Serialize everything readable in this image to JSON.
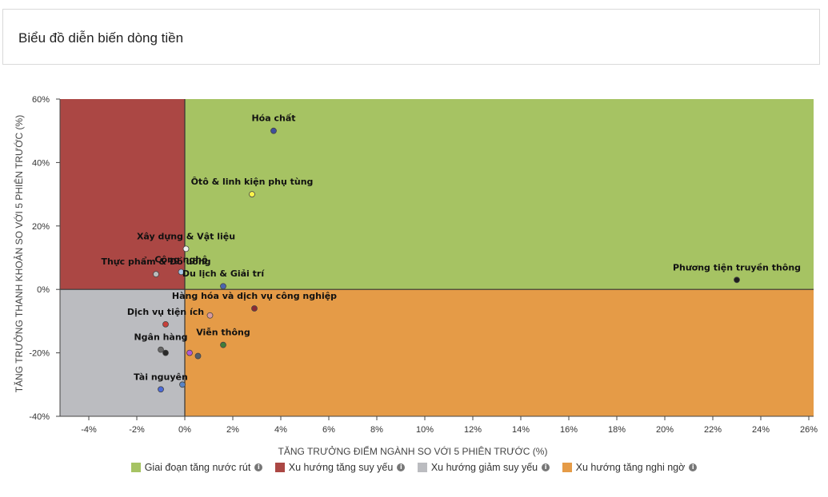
{
  "header": {
    "title": "Biểu đồ diễn biến dòng tiền"
  },
  "chart_data": {
    "type": "scatter",
    "xlabel": "TĂNG TRƯỞNG ĐIỂM NGÀNH SO VỚI 5 PHIÊN TRƯỚC (%)",
    "ylabel": "TĂNG TRƯỞNG THANH KHOẢN SO VỚI 5 PHIÊN TRƯỚC (%)",
    "xlim": [
      -5.2,
      26.2
    ],
    "ylim": [
      -40,
      60
    ],
    "x_ticks": [
      -4,
      -2,
      0,
      2,
      4,
      6,
      8,
      10,
      12,
      14,
      16,
      18,
      20,
      22,
      24,
      26
    ],
    "y_ticks": [
      -40,
      -20,
      0,
      20,
      40,
      60
    ],
    "quadrants": [
      {
        "name": "Giai đoạn tăng nước rút",
        "color": "#a6c363",
        "x_sign": "positive",
        "y_sign": "positive"
      },
      {
        "name": "Xu hướng tăng suy yếu",
        "color": "#ab4744",
        "x_sign": "negative",
        "y_sign": "positive"
      },
      {
        "name": "Xu hướng giảm suy yếu",
        "color": "#bbbcc0",
        "x_sign": "negative",
        "y_sign": "negative"
      },
      {
        "name": "Xu hướng tăng nghi ngờ",
        "color": "#e59b47",
        "x_sign": "positive",
        "y_sign": "negative"
      }
    ],
    "points": [
      {
        "label": "Hóa chất",
        "x": 3.7,
        "y": 50,
        "color": "#3e4f9b"
      },
      {
        "label": "Ôtô & linh kiện phụ tùng",
        "x": 2.8,
        "y": 30,
        "color": "#fcf34c"
      },
      {
        "label": "Xây dựng & Vật liệu",
        "x": 0.05,
        "y": 12.8,
        "color": "#f0f0f0"
      },
      {
        "label": "Công nghệ",
        "x": -0.15,
        "y": 5.5,
        "color": "#a7c6e6"
      },
      {
        "label": "Thực phẩm & Đồ uống",
        "x": -1.2,
        "y": 4.8,
        "color": "#bbbbbb"
      },
      {
        "label": "Du lịch & Giải trí",
        "x": 1.6,
        "y": 1,
        "color": "#4b64b0"
      },
      {
        "label": "Phương tiện truyền thông",
        "x": 23,
        "y": 3,
        "color": "#1e1e1e"
      },
      {
        "label": "Hàng hóa và dịch vụ công nghiệp",
        "x": 2.9,
        "y": -6,
        "color": "#8a2a34"
      },
      {
        "label": "Dịch vụ tiện ích",
        "x": -0.8,
        "y": -11,
        "color": "#c8403a"
      },
      {
        "label": "",
        "x": 1.05,
        "y": -8.2,
        "color": "#d99aa0"
      },
      {
        "label": "Viễn thông",
        "x": 1.6,
        "y": -17.5,
        "color": "#3f7d3a"
      },
      {
        "label": "Ngân hàng",
        "x": -1.0,
        "y": -19,
        "color": "#666666"
      },
      {
        "label": "",
        "x": -0.8,
        "y": -20,
        "color": "#2a2a2a"
      },
      {
        "label": "",
        "x": 0.2,
        "y": -20,
        "color": "#b25ad0"
      },
      {
        "label": "",
        "x": 0.55,
        "y": -21,
        "color": "#56606a"
      },
      {
        "label": "Tài nguyên",
        "x": -1.0,
        "y": -31.5,
        "color": "#4b6ad8"
      },
      {
        "label": "",
        "x": -0.1,
        "y": -30,
        "color": "#5a84c4"
      }
    ],
    "legend": {
      "position": "bottom"
    }
  },
  "legend": {
    "info_glyph": "i",
    "items": [
      {
        "label": "Giai đoạn tăng nước rút",
        "color": "#a6c363"
      },
      {
        "label": "Xu hướng tăng suy yếu",
        "color": "#ab4744"
      },
      {
        "label": "Xu hướng giảm suy yếu",
        "color": "#bbbcc0"
      },
      {
        "label": "Xu hướng tăng nghi ngờ",
        "color": "#e59b47"
      }
    ]
  }
}
